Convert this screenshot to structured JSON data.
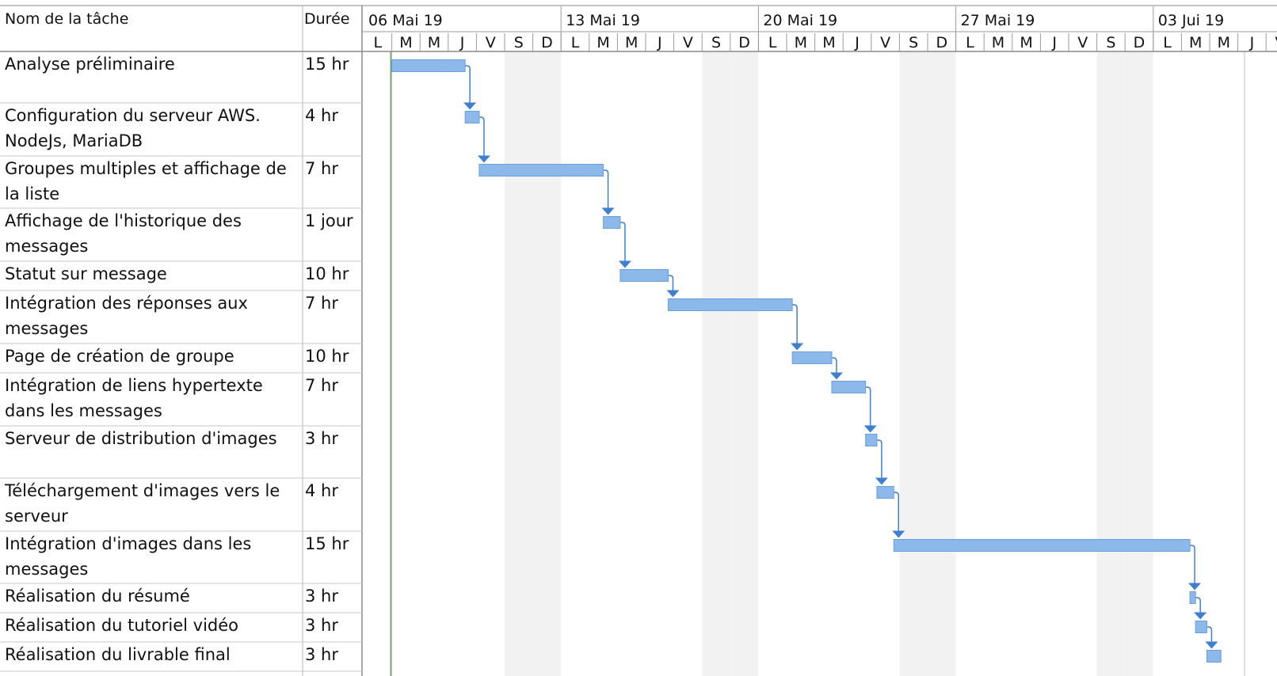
{
  "table": {
    "col_task_header": "Nom de la tâche",
    "col_duration_header": "Durée"
  },
  "timescale": {
    "weeks": [
      "06 Mai 19",
      "13 Mai 19",
      "20 Mai 19",
      "27 Mai 19",
      "03 Jui 19"
    ],
    "day_letters": [
      "L",
      "M",
      "M",
      "J",
      "V",
      "S",
      "D"
    ],
    "start_date": "2019-05-06",
    "end_date": "2019-06-08"
  },
  "chart_data": {
    "type": "gantt",
    "x_unit": "date",
    "xlim": [
      "2019-05-06",
      "2019-06-08"
    ],
    "tasks": [
      {
        "name": [
          "Analyse préliminaire"
        ],
        "duration": "15 hr",
        "start": "2019-05-07",
        "end": "2019-05-09.6"
      },
      {
        "name": [
          "Configuration du serveur AWS.",
          "NodeJs, MariaDB"
        ],
        "duration": "4 hr",
        "start": "2019-05-09.6",
        "end": "2019-05-10.1"
      },
      {
        "name": [
          "Groupes multiples et affichage de",
          "la liste"
        ],
        "duration": "7 hr",
        "start": "2019-05-10.1",
        "end": "2019-05-14.5"
      },
      {
        "name": [
          "Affichage de l'historique des",
          "messages"
        ],
        "duration": "1 jour",
        "start": "2019-05-14.5",
        "end": "2019-05-15.1"
      },
      {
        "name": [
          "Statut sur message"
        ],
        "duration": "10 hr",
        "start": "2019-05-15.1",
        "end": "2019-05-16.8"
      },
      {
        "name": [
          "Intégration des réponses aux",
          "messages"
        ],
        "duration": "7 hr",
        "start": "2019-05-16.8",
        "end": "2019-05-21.2"
      },
      {
        "name": [
          "Page de création de groupe"
        ],
        "duration": "10 hr",
        "start": "2019-05-21.2",
        "end": "2019-05-22.6"
      },
      {
        "name": [
          "Intégration de liens hypertexte",
          "dans les messages"
        ],
        "duration": "7 hr",
        "start": "2019-05-22.6",
        "end": "2019-05-23.8"
      },
      {
        "name": [
          "Serveur de distribution d'images",
          ""
        ],
        "duration": "3 hr",
        "start": "2019-05-23.8",
        "end": "2019-05-24.2"
      },
      {
        "name": [
          "Téléchargement d'images vers le",
          "serveur"
        ],
        "duration": "4 hr",
        "start": "2019-05-24.2",
        "end": "2019-05-24.8"
      },
      {
        "name": [
          "Intégration d'images dans les",
          "messages"
        ],
        "duration": "15 hr",
        "start": "2019-05-24.8",
        "end": "2019-06-04.3"
      },
      {
        "name": [
          "Réalisation du résumé"
        ],
        "duration": "3 hr",
        "start": "2019-06-04.3",
        "end": "2019-06-04.5"
      },
      {
        "name": [
          "Réalisation du tutoriel vidéo"
        ],
        "duration": "3 hr",
        "start": "2019-06-04.5",
        "end": "2019-06-04.9"
      },
      {
        "name": [
          "Réalisation du livrable final"
        ],
        "duration": "3 hr",
        "start": "2019-06-04.9",
        "end": "2019-06-05.4"
      }
    ],
    "dependencies": "finish-to-start chain, each task linked to the next",
    "grid": true,
    "weekend_shading": true,
    "colors": {
      "bar": "#8cb8ea",
      "bar_border": "#6a9fda",
      "link": "#3f7fd0",
      "weekend": "#f2f2f2",
      "today_line": "#6ea36e",
      "grid": "#c8c8c8"
    }
  }
}
